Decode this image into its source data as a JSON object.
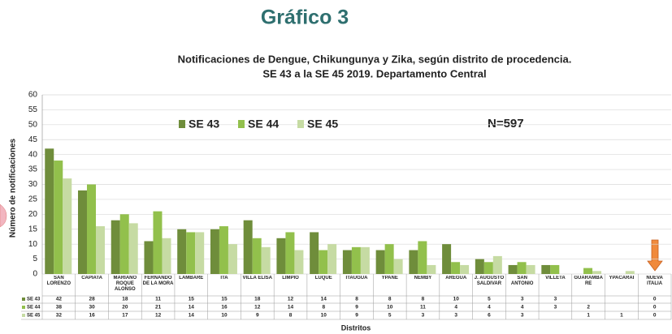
{
  "header": "Gráfico 3",
  "chart_data": {
    "type": "bar",
    "title": "Notificaciones de Dengue, Chikungunya y Zika, según distrito de procedencia.",
    "subtitle": "SE 43 a la SE 45 2019. Departamento Central",
    "y_label": "Número de notificaciones",
    "x_label": "Distritos",
    "annotation": "N=597",
    "categories": [
      "SAN LORENZO",
      "CAPIATA",
      "MARIANO ROQUE ALONSO",
      "FERNANDO DE LA MORA",
      "LAMBARE",
      "ITA",
      "VILLA ELISA",
      "LIMPIO",
      "LUQUE",
      "ITAUGUA",
      "YPANE",
      "ÑEMBY",
      "AREGUA",
      "J. AUGUSTO SALDIVAR",
      "SAN ANTONIO",
      "VILLETA",
      "GUARAMBA RE",
      "YPACARAI",
      "NUEVA ITALIA"
    ],
    "series": [
      {
        "name": "SE 43",
        "color": "#6f8d3b",
        "values": [
          42,
          28,
          18,
          11,
          15,
          15,
          18,
          12,
          14,
          8,
          8,
          8,
          10,
          5,
          3,
          3,
          null,
          null,
          0
        ]
      },
      {
        "name": "SE 44",
        "color": "#92c04c",
        "values": [
          38,
          30,
          20,
          21,
          14,
          16,
          12,
          14,
          8,
          9,
          10,
          11,
          4,
          4,
          4,
          3,
          2,
          null,
          0
        ]
      },
      {
        "name": "SE 45",
        "color": "#c6dba3",
        "values": [
          32,
          16,
          17,
          12,
          14,
          10,
          9,
          8,
          10,
          9,
          5,
          3,
          3,
          6,
          3,
          null,
          1,
          1,
          0
        ]
      }
    ],
    "ylim": [
      0,
      60
    ],
    "yticks": [
      0,
      5,
      10,
      15,
      20,
      25,
      30,
      35,
      40,
      45,
      50,
      55,
      60
    ],
    "grid": true,
    "legend": "top"
  }
}
